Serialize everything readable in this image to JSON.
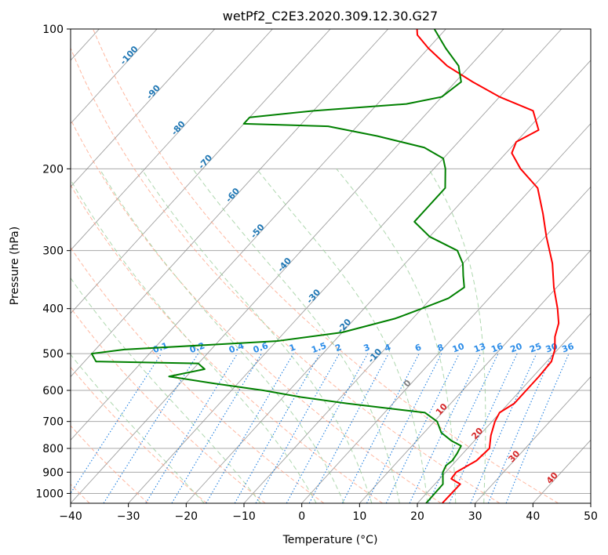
{
  "chart_data": {
    "type": "line",
    "chart_kind": "skew-T log-P diagram",
    "title": "wetPf2_C2E3.2020.309.12.30.G27",
    "xlabel": "Temperature (°C)",
    "ylabel": "Pressure (hPa)",
    "xlim": [
      -40,
      50
    ],
    "ylim": [
      1050,
      100
    ],
    "y_scale": "log",
    "x_ticks": [
      "−40",
      "−30",
      "−20",
      "−10",
      "0",
      "10",
      "20",
      "30",
      "40",
      "50"
    ],
    "x_tick_values": [
      -40,
      -30,
      -20,
      -10,
      0,
      10,
      20,
      30,
      40,
      50
    ],
    "y_ticks": [
      "100",
      "200",
      "300",
      "400",
      "500",
      "600",
      "700",
      "800",
      "900",
      "1000"
    ],
    "y_tick_values": [
      100,
      200,
      300,
      400,
      500,
      600,
      700,
      800,
      900,
      1000
    ],
    "grid": true,
    "series": [
      {
        "color": "#ff0000",
        "points": [
          [
            1050,
            24.3
          ],
          [
            955,
            24.4
          ],
          [
            930,
            22.0
          ],
          [
            900,
            21.8
          ],
          [
            850,
            23.5
          ],
          [
            800,
            23.8
          ],
          [
            750,
            22.0
          ],
          [
            700,
            20.5
          ],
          [
            670,
            19.9
          ],
          [
            640,
            21.0
          ],
          [
            600,
            21.0
          ],
          [
            560,
            21.0
          ],
          [
            520,
            20.8
          ],
          [
            490,
            19.5
          ],
          [
            460,
            17.5
          ],
          [
            430,
            16.0
          ],
          [
            400,
            13.5
          ],
          [
            360,
            9.5
          ],
          [
            320,
            5.5
          ],
          [
            280,
            0.2
          ],
          [
            250,
            -4.0
          ],
          [
            220,
            -9.0
          ],
          [
            200,
            -15.0
          ],
          [
            185,
            -19.0
          ],
          [
            175,
            -20.0
          ],
          [
            165,
            -18.0
          ],
          [
            150,
            -22.0
          ],
          [
            140,
            -30.0
          ],
          [
            130,
            -37.0
          ],
          [
            120,
            -44.0
          ],
          [
            110,
            -50.0
          ],
          [
            103,
            -54.0
          ],
          [
            100,
            -55.0
          ]
        ]
      },
      {
        "color": "#008000",
        "points": [
          [
            1050,
            21.5
          ],
          [
            955,
            21.4
          ],
          [
            900,
            19.5
          ],
          [
            870,
            19.0
          ],
          [
            850,
            19.3
          ],
          [
            820,
            19.0
          ],
          [
            790,
            18.5
          ],
          [
            770,
            16.0
          ],
          [
            740,
            13.0
          ],
          [
            700,
            10.5
          ],
          [
            670,
            7.0
          ],
          [
            660,
            2.0
          ],
          [
            640,
            -8.0
          ],
          [
            620,
            -17.0
          ],
          [
            600,
            -24.5
          ],
          [
            580,
            -34.0
          ],
          [
            560,
            -43.0
          ],
          [
            540,
            -38.0
          ],
          [
            525,
            -40.0
          ],
          [
            520,
            -58.0
          ],
          [
            500,
            -60.0
          ],
          [
            490,
            -55.0
          ],
          [
            470,
            -30.0
          ],
          [
            450,
            -20.0
          ],
          [
            420,
            -13.0
          ],
          [
            400,
            -10.0
          ],
          [
            380,
            -7.0
          ],
          [
            360,
            -6.0
          ],
          [
            340,
            -8.0
          ],
          [
            320,
            -10.0
          ],
          [
            300,
            -13.0
          ],
          [
            280,
            -20.0
          ],
          [
            260,
            -25.0
          ],
          [
            240,
            -25.0
          ],
          [
            220,
            -25.0
          ],
          [
            200,
            -28.0
          ],
          [
            190,
            -30.0
          ],
          [
            180,
            -35.0
          ],
          [
            170,
            -45.0
          ],
          [
            162,
            -55.0
          ],
          [
            160,
            -70.0
          ],
          [
            155,
            -70.0
          ],
          [
            150,
            -60.0
          ],
          [
            145,
            -45.0
          ],
          [
            140,
            -40.0
          ],
          [
            130,
            -39.0
          ],
          [
            120,
            -42.0
          ],
          [
            110,
            -47.0
          ],
          [
            100,
            -52.0
          ]
        ]
      }
    ],
    "dry_adiabats_c": [
      -100,
      -90,
      -80,
      -70,
      -60,
      -50,
      -40,
      -30,
      -20,
      -10,
      0,
      10,
      20,
      30,
      40
    ],
    "dry_adiabat_labels": [
      {
        "text": "-100",
        "t": -100,
        "p": 115,
        "color": "#1f77b4"
      },
      {
        "text": "-90",
        "t": -90,
        "p": 138,
        "color": "#1f77b4"
      },
      {
        "text": "-80",
        "t": -80,
        "p": 165,
        "color": "#1f77b4"
      },
      {
        "text": "-70",
        "t": -70,
        "p": 195,
        "color": "#1f77b4"
      },
      {
        "text": "-60",
        "t": -60,
        "p": 230,
        "color": "#1f77b4"
      },
      {
        "text": "-50",
        "t": -50,
        "p": 275,
        "color": "#1f77b4"
      },
      {
        "text": "-40",
        "t": -40,
        "p": 325,
        "color": "#1f77b4"
      },
      {
        "text": "-30",
        "t": -30,
        "p": 380,
        "color": "#1f77b4"
      },
      {
        "text": "-20",
        "t": -20,
        "p": 440,
        "color": "#1f77b4"
      },
      {
        "text": "-10",
        "t": -10,
        "p": 510,
        "color": "#1f77b4"
      },
      {
        "text": "0",
        "t": 0,
        "p": 585,
        "color": "#7f7f7f"
      },
      {
        "text": "10",
        "t": 10,
        "p": 665,
        "color": "#d62728"
      },
      {
        "text": "20",
        "t": 20,
        "p": 750,
        "color": "#d62728"
      },
      {
        "text": "30",
        "t": 30,
        "p": 840,
        "color": "#d62728"
      },
      {
        "text": "40",
        "t": 40,
        "p": 935,
        "color": "#d62728"
      }
    ],
    "moist_adiabats_c": [
      -20,
      -10,
      0,
      5,
      10,
      15,
      20,
      25,
      30
    ],
    "mixing_ratio_g_per_kg": [
      0.1,
      0.2,
      0.4,
      0.6,
      1,
      1.5,
      2,
      3,
      4,
      6,
      8,
      10,
      13,
      16,
      20,
      25,
      30,
      36
    ],
    "mixing_ratio_labels": [
      "0.1",
      "0.2",
      "0.4",
      "0.6",
      "1",
      "1.5",
      "2",
      "3",
      "4",
      "6",
      "8",
      "10",
      "13",
      "16",
      "20",
      "25",
      "30",
      "36"
    ],
    "mixing_ratio_label_pressure": 500,
    "colors": {
      "temperature": "#ff0000",
      "dewpoint": "#008000",
      "isotherm": "#888888",
      "isobar": "#aaaaaa",
      "dry_adiabat": "#ff9977",
      "moist_adiabat": "#9acd9a",
      "mixing_ratio": "#1f7fe0",
      "dry_label": "#1f77b4",
      "warm_label": "#d62728",
      "mixing_label": "#2b8ce8"
    }
  }
}
